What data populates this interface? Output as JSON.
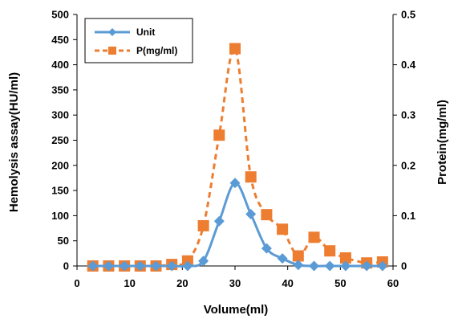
{
  "chart_data": {
    "type": "line",
    "xlabel": "Volume(ml)",
    "ylabel": "Hemolysis assay(HU/ml)",
    "y2label": "Protein(mg/ml)",
    "xlim": [
      0,
      60
    ],
    "ylim": [
      0,
      500
    ],
    "y2lim": [
      0,
      0.5
    ],
    "xticks": [
      0,
      10,
      20,
      30,
      40,
      50,
      60
    ],
    "yticks": [
      0,
      50,
      100,
      150,
      200,
      250,
      300,
      350,
      400,
      450,
      500
    ],
    "y2ticks": [
      0,
      0.1,
      0.2,
      0.3,
      0.4,
      0.5
    ],
    "grid": false,
    "legend_position": "top-left",
    "series": [
      {
        "name": "Unit",
        "axis": "left",
        "color": "#5B9BD5",
        "marker": "diamond",
        "line_style": "solid",
        "x": [
          3,
          6,
          9,
          12,
          15,
          18,
          21,
          24,
          27,
          30,
          33,
          36,
          39,
          42,
          45,
          48,
          51,
          55,
          58
        ],
        "y": [
          0,
          0,
          0,
          0,
          0,
          0,
          0,
          10,
          89,
          165,
          103,
          35,
          15,
          2,
          0,
          0,
          0,
          0,
          0
        ]
      },
      {
        "name": "P(mg/ml)",
        "axis": "right",
        "color": "#ED7D31",
        "marker": "square",
        "line_style": "dashed",
        "x": [
          3,
          6,
          9,
          12,
          15,
          18,
          21,
          24,
          27,
          30,
          33,
          36,
          39,
          42,
          45,
          48,
          51,
          55,
          58
        ],
        "y": [
          0,
          0,
          0,
          0,
          0,
          0.003,
          0.01,
          0.08,
          0.26,
          0.432,
          0.177,
          0.102,
          0.073,
          0.02,
          0.057,
          0.03,
          0.016,
          0.006,
          0.008
        ]
      }
    ]
  }
}
